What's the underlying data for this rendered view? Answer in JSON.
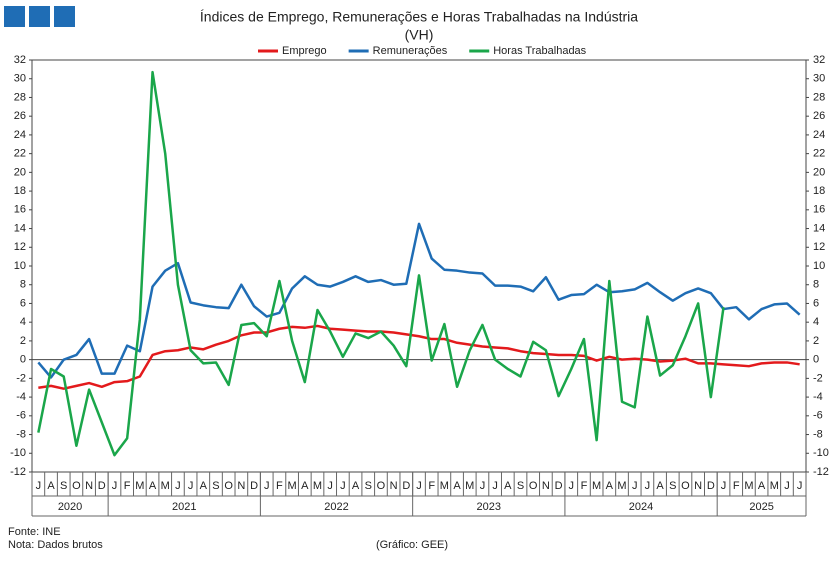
{
  "chart_data": {
    "type": "line",
    "title": "Índices de Emprego, Remunerações e Horas Trabalhadas na Indústria",
    "subtitle": "(VH)",
    "categories": [
      "J",
      "A",
      "S",
      "O",
      "N",
      "D",
      "J",
      "F",
      "M",
      "A",
      "M",
      "J",
      "J",
      "A",
      "S",
      "O",
      "N",
      "D",
      "J",
      "F",
      "M",
      "A",
      "M",
      "J",
      "J",
      "A",
      "S",
      "O",
      "N",
      "D",
      "J",
      "F",
      "M",
      "A",
      "M",
      "J",
      "J",
      "A",
      "S",
      "O",
      "N",
      "D",
      "J",
      "F",
      "M",
      "A",
      "M",
      "J",
      "J",
      "A",
      "S",
      "O",
      "N",
      "D",
      "J",
      "F",
      "M",
      "A",
      "M",
      "J",
      "J"
    ],
    "x_groups": [
      {
        "label": "2020",
        "count": 6
      },
      {
        "label": "2021",
        "count": 12
      },
      {
        "label": "2022",
        "count": 12
      },
      {
        "label": "2023",
        "count": 12
      },
      {
        "label": "2024",
        "count": 12
      },
      {
        "label": "2025",
        "count": 7
      }
    ],
    "series": [
      {
        "name": "Emprego",
        "color": "#e31a1c",
        "values": [
          -3.0,
          -2.8,
          -3.1,
          -2.8,
          -2.5,
          -2.9,
          -2.4,
          -2.3,
          -1.8,
          0.5,
          0.9,
          1.0,
          1.3,
          1.1,
          1.6,
          2.0,
          2.6,
          2.9,
          2.9,
          3.3,
          3.5,
          3.4,
          3.6,
          3.3,
          3.2,
          3.1,
          3.0,
          3.0,
          2.9,
          2.7,
          2.5,
          2.2,
          2.2,
          1.8,
          1.6,
          1.4,
          1.3,
          1.2,
          0.9,
          0.7,
          0.6,
          0.5,
          0.5,
          0.4,
          -0.1,
          0.3,
          0.0,
          0.1,
          0.0,
          -0.2,
          -0.1,
          0.1,
          -0.4,
          -0.4,
          -0.5,
          -0.6,
          -0.7,
          -0.4,
          -0.3,
          -0.3,
          -0.5
        ]
      },
      {
        "name": "Remunerações",
        "color": "#1f6db5",
        "values": [
          -0.3,
          -1.9,
          0.0,
          0.5,
          2.2,
          -1.5,
          -1.5,
          1.5,
          0.9,
          7.8,
          9.5,
          10.3,
          6.1,
          5.8,
          5.6,
          5.5,
          8.0,
          5.7,
          4.6,
          5.0,
          7.6,
          8.9,
          8.0,
          7.8,
          8.3,
          8.9,
          8.3,
          8.5,
          8.0,
          8.1,
          14.5,
          10.8,
          9.6,
          9.5,
          9.3,
          9.2,
          7.9,
          7.9,
          7.8,
          7.3,
          8.8,
          6.4,
          6.9,
          7.0,
          8.0,
          7.2,
          7.3,
          7.5,
          8.2,
          7.2,
          6.3,
          7.1,
          7.6,
          7.1,
          5.4,
          5.6,
          4.3,
          5.4,
          5.9,
          6.0,
          4.8
        ]
      },
      {
        "name": "Horas Trabalhadas",
        "color": "#1aa64a",
        "values": [
          -7.8,
          -1.0,
          -1.8,
          -9.2,
          -3.2,
          -6.7,
          -10.2,
          -8.4,
          4.3,
          30.7,
          22.0,
          8.0,
          1.0,
          -0.4,
          -0.3,
          -2.7,
          3.7,
          3.9,
          2.5,
          8.4,
          2.0,
          -2.4,
          5.3,
          3.0,
          0.3,
          2.8,
          2.3,
          3.0,
          1.5,
          -0.7,
          9.0,
          -0.1,
          3.8,
          -2.9,
          1.0,
          3.7,
          0.0,
          -1.0,
          -1.8,
          1.9,
          1.0,
          -3.9,
          -1.0,
          2.2,
          -8.6,
          8.4,
          -4.5,
          -5.1,
          4.6,
          -1.7,
          -0.6,
          2.5,
          6.0,
          -4.0,
          5.6,
          null,
          null,
          null,
          null,
          null,
          null
        ]
      }
    ],
    "ylim": [
      -12,
      32
    ],
    "yticks": [
      -12,
      -10,
      -8,
      -6,
      -4,
      -2,
      0,
      2,
      4,
      6,
      8,
      10,
      12,
      14,
      16,
      18,
      20,
      22,
      24,
      26,
      28,
      30,
      32
    ],
    "y2lim": [
      -12,
      32
    ],
    "y2ticks": [
      -12,
      -10,
      -8,
      -6,
      -4,
      -2,
      0,
      2,
      4,
      6,
      8,
      10,
      12,
      14,
      16,
      18,
      20,
      22,
      24,
      26,
      28,
      30,
      32
    ],
    "grid": false,
    "legend": "top",
    "source": "Fonte: INE",
    "note": "Nota: Dados brutos",
    "credit": "(Gráfico: GEE)"
  }
}
